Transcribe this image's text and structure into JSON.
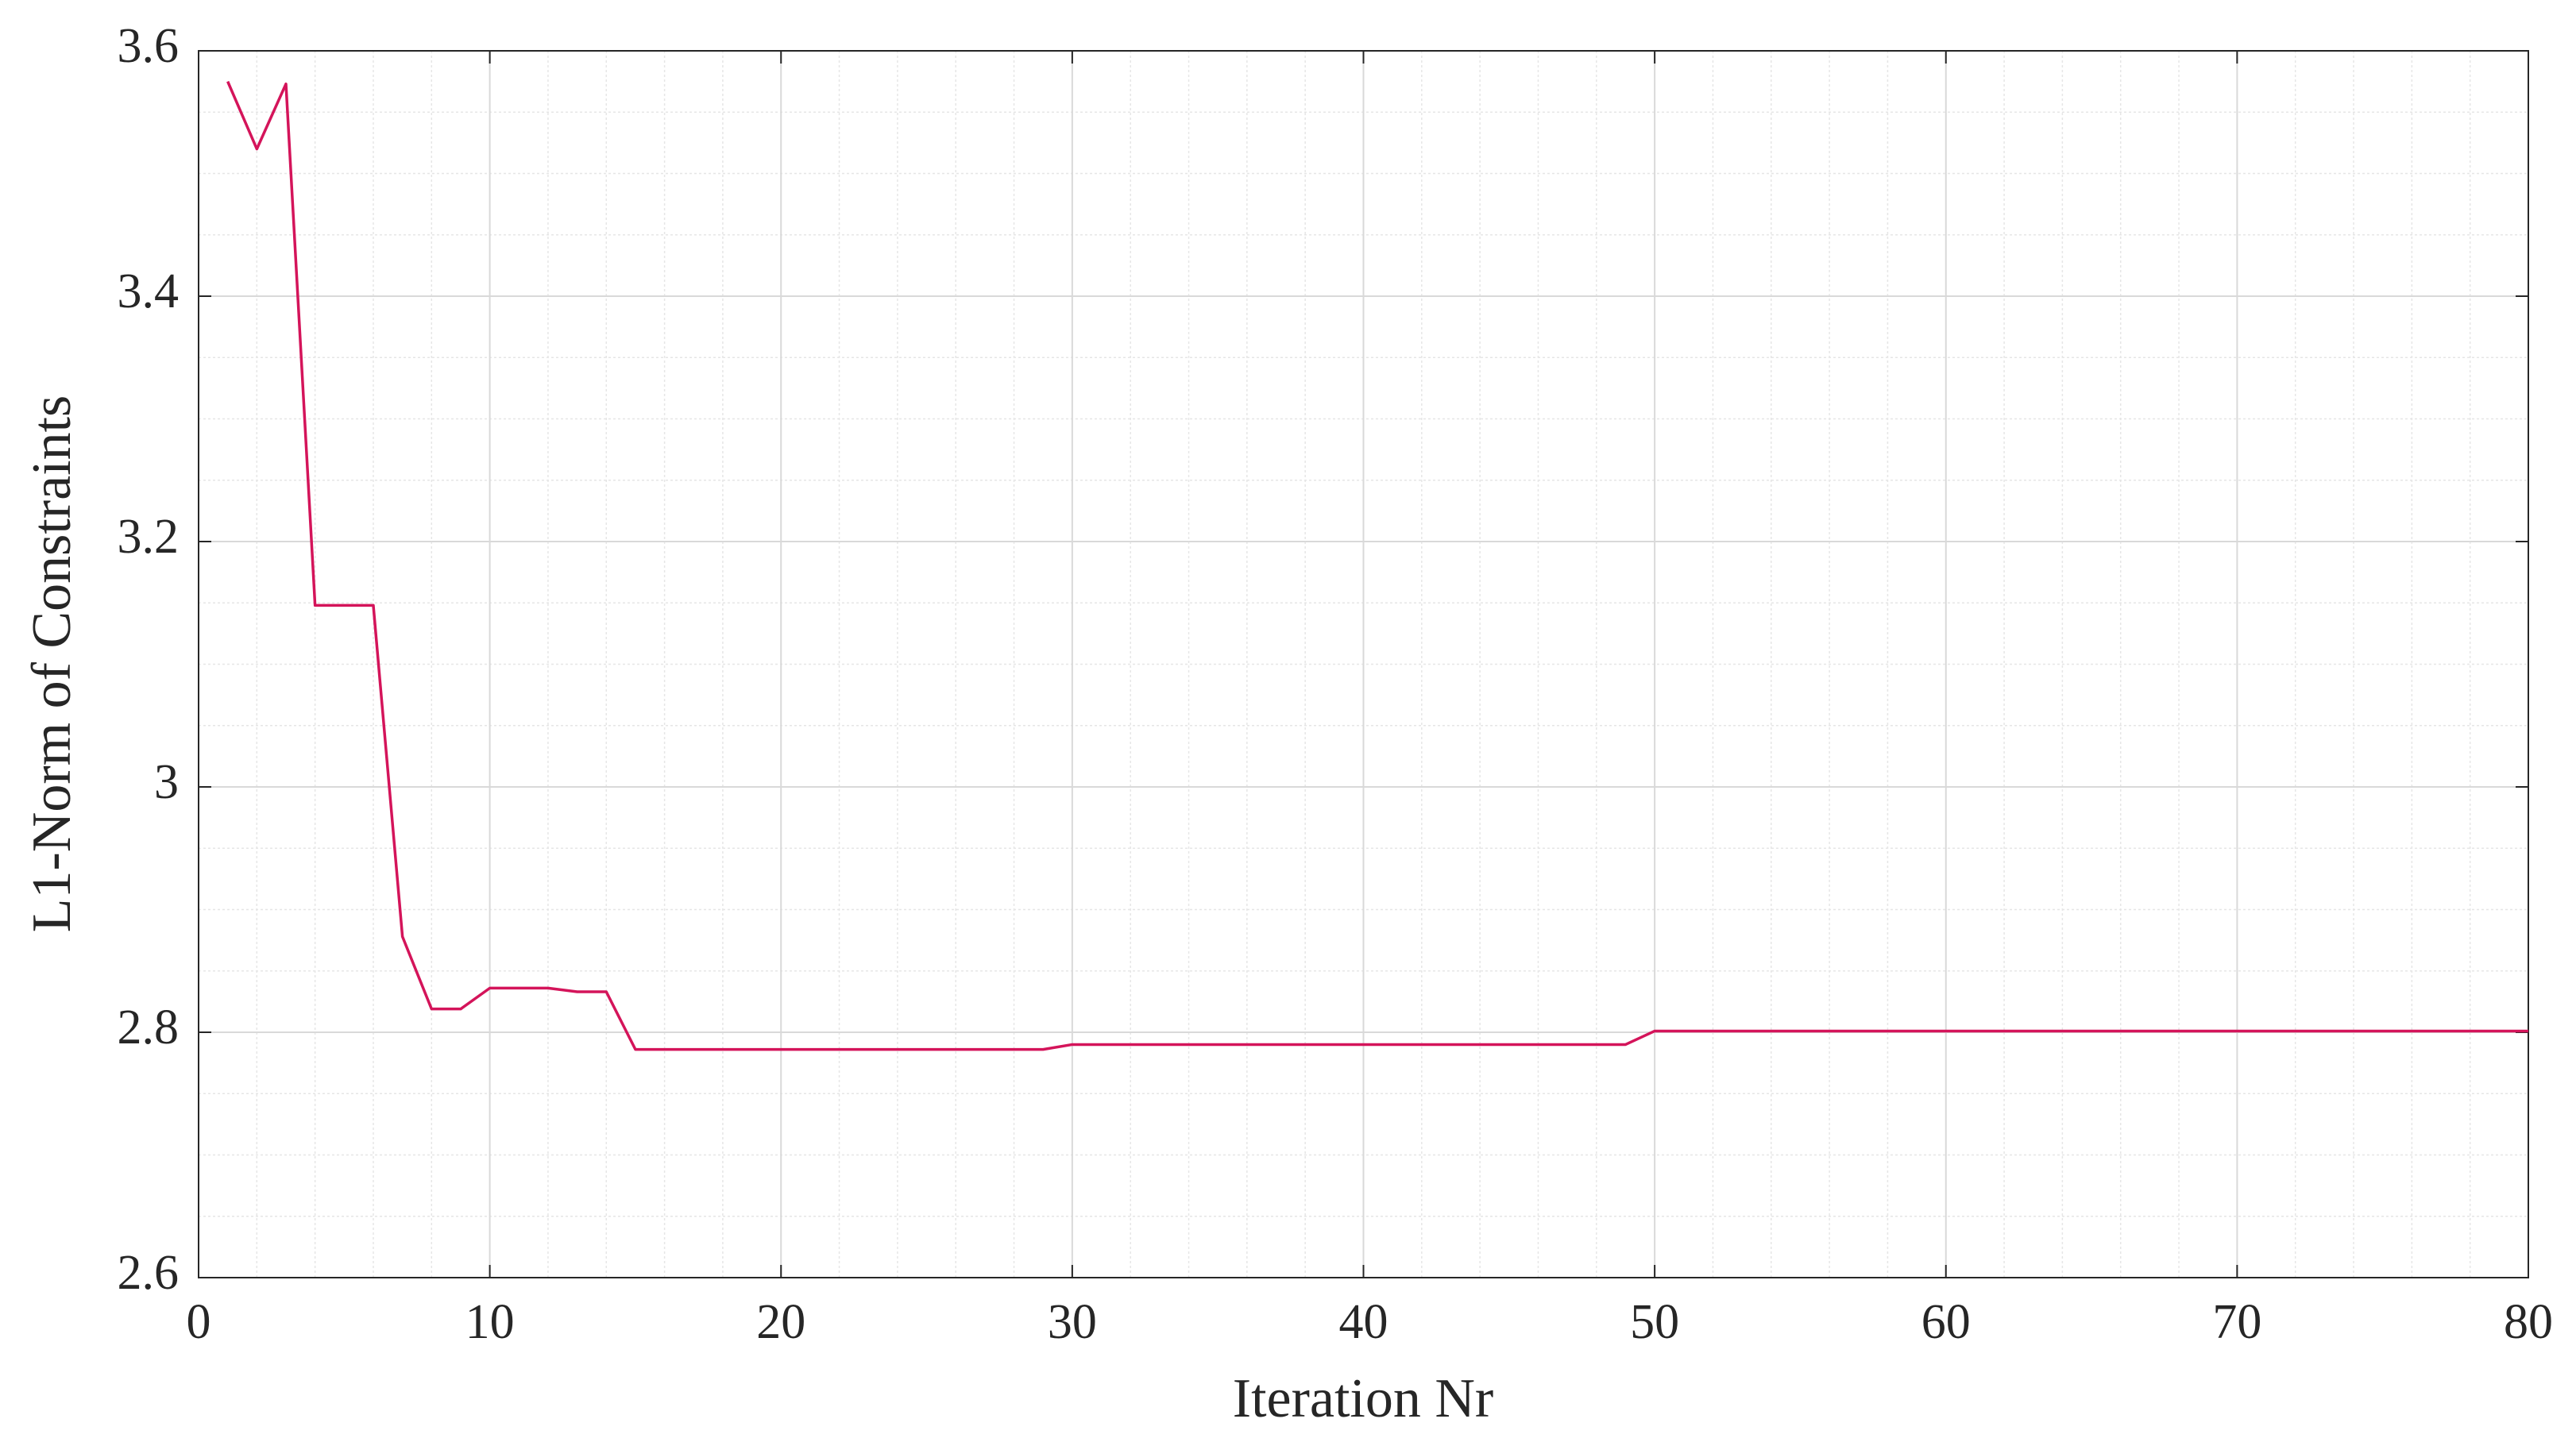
{
  "chart_data": {
    "type": "line",
    "x_label": "Iteration Nr",
    "y_label": "L1-Norm of Constraints",
    "x": [
      1,
      2,
      3,
      4,
      5,
      6,
      7,
      8,
      9,
      10,
      11,
      12,
      13,
      14,
      15,
      16,
      17,
      18,
      19,
      20,
      21,
      22,
      23,
      24,
      25,
      26,
      27,
      28,
      29,
      30,
      31,
      32,
      33,
      34,
      35,
      36,
      37,
      38,
      39,
      40,
      41,
      42,
      43,
      44,
      45,
      46,
      47,
      48,
      49,
      50,
      51,
      52,
      53,
      54,
      55,
      56,
      57,
      58,
      59,
      60,
      61,
      62,
      63,
      64,
      65,
      66,
      67,
      68,
      69,
      70,
      71,
      72,
      73,
      74,
      75,
      76,
      77,
      78,
      79,
      80
    ],
    "series": [
      {
        "color": "#d4145a",
        "values": [
          3.575,
          3.52,
          3.573,
          3.148,
          3.148,
          3.148,
          2.878,
          2.819,
          2.819,
          2.836,
          2.836,
          2.836,
          2.833,
          2.833,
          2.786,
          2.786,
          2.786,
          2.786,
          2.786,
          2.786,
          2.786,
          2.786,
          2.786,
          2.786,
          2.786,
          2.786,
          2.786,
          2.786,
          2.786,
          2.79,
          2.79,
          2.79,
          2.79,
          2.79,
          2.79,
          2.79,
          2.79,
          2.79,
          2.79,
          2.79,
          2.79,
          2.79,
          2.79,
          2.79,
          2.79,
          2.79,
          2.79,
          2.79,
          2.79,
          2.801,
          2.801,
          2.801,
          2.801,
          2.801,
          2.801,
          2.801,
          2.801,
          2.801,
          2.801,
          2.801,
          2.801,
          2.801,
          2.801,
          2.801,
          2.801,
          2.801,
          2.801,
          2.801,
          2.801,
          2.801,
          2.801,
          2.801,
          2.801,
          2.801,
          2.801,
          2.801,
          2.801,
          2.801,
          2.801,
          2.801
        ]
      }
    ],
    "xlim": [
      0,
      80
    ],
    "xticks": [
      0,
      10,
      20,
      30,
      40,
      50,
      60,
      70,
      80
    ],
    "ylim": [
      2.6,
      3.6
    ],
    "yticks": [
      2.6,
      2.8,
      3,
      3.2,
      3.4,
      3.6
    ],
    "grid": true,
    "minor_grid": true
  }
}
